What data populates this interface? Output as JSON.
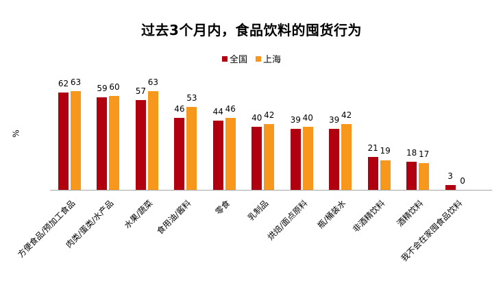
{
  "chart_data": {
    "type": "bar",
    "title": "过去3个月内，食品饮料的囤货行为",
    "xlabel": "",
    "ylabel": "%",
    "ylim": [
      0,
      70
    ],
    "grid": false,
    "legend_position": "top",
    "categories": [
      "方便食品/预加工食品",
      "肉类/蛋类/水产品",
      "水果/蔬菜",
      "食用油/酱料",
      "零食",
      "乳制品",
      "烘焙/面点原料",
      "瓶/桶装水",
      "非酒精饮料",
      "酒精饮料",
      "我不会在家囤食品饮料"
    ],
    "series": [
      {
        "name": "全国",
        "color": "#b00010",
        "values": [
          62,
          59,
          57,
          46,
          44,
          40,
          39,
          39,
          21,
          18,
          3
        ]
      },
      {
        "name": "上海",
        "color": "#f7981d",
        "values": [
          63,
          60,
          63,
          53,
          46,
          42,
          40,
          42,
          19,
          17,
          0
        ]
      }
    ]
  },
  "header": {
    "title": "过去3个月内，食品饮料的囤货行为"
  },
  "legend": {
    "items": [
      {
        "label": "全国",
        "color": "#b00010"
      },
      {
        "label": "上海",
        "color": "#f7981d"
      }
    ]
  },
  "axis": {
    "ylabel": "%"
  }
}
